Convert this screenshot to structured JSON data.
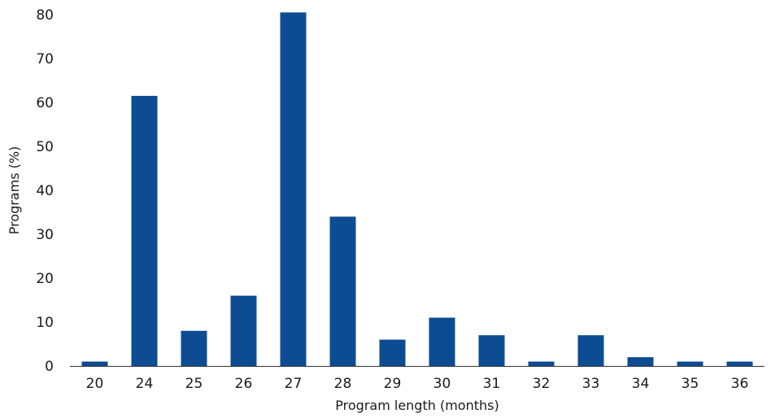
{
  "chart_data": {
    "type": "bar",
    "title": "",
    "xlabel": "Program length (months)",
    "ylabel": "Programs (%)",
    "categories": [
      "20",
      "24",
      "25",
      "26",
      "27",
      "28",
      "29",
      "30",
      "31",
      "32",
      "33",
      "34",
      "35",
      "36"
    ],
    "values": [
      1,
      61.5,
      8,
      16,
      80.5,
      34,
      6,
      11,
      7,
      1,
      7,
      2,
      1,
      1
    ],
    "ylim": [
      0,
      80
    ],
    "yticks": [
      0,
      10,
      20,
      30,
      40,
      50,
      60,
      70,
      80
    ],
    "grid": false,
    "legend": "none",
    "bar_color": "#0d4c92",
    "axis_color": "#333333"
  }
}
